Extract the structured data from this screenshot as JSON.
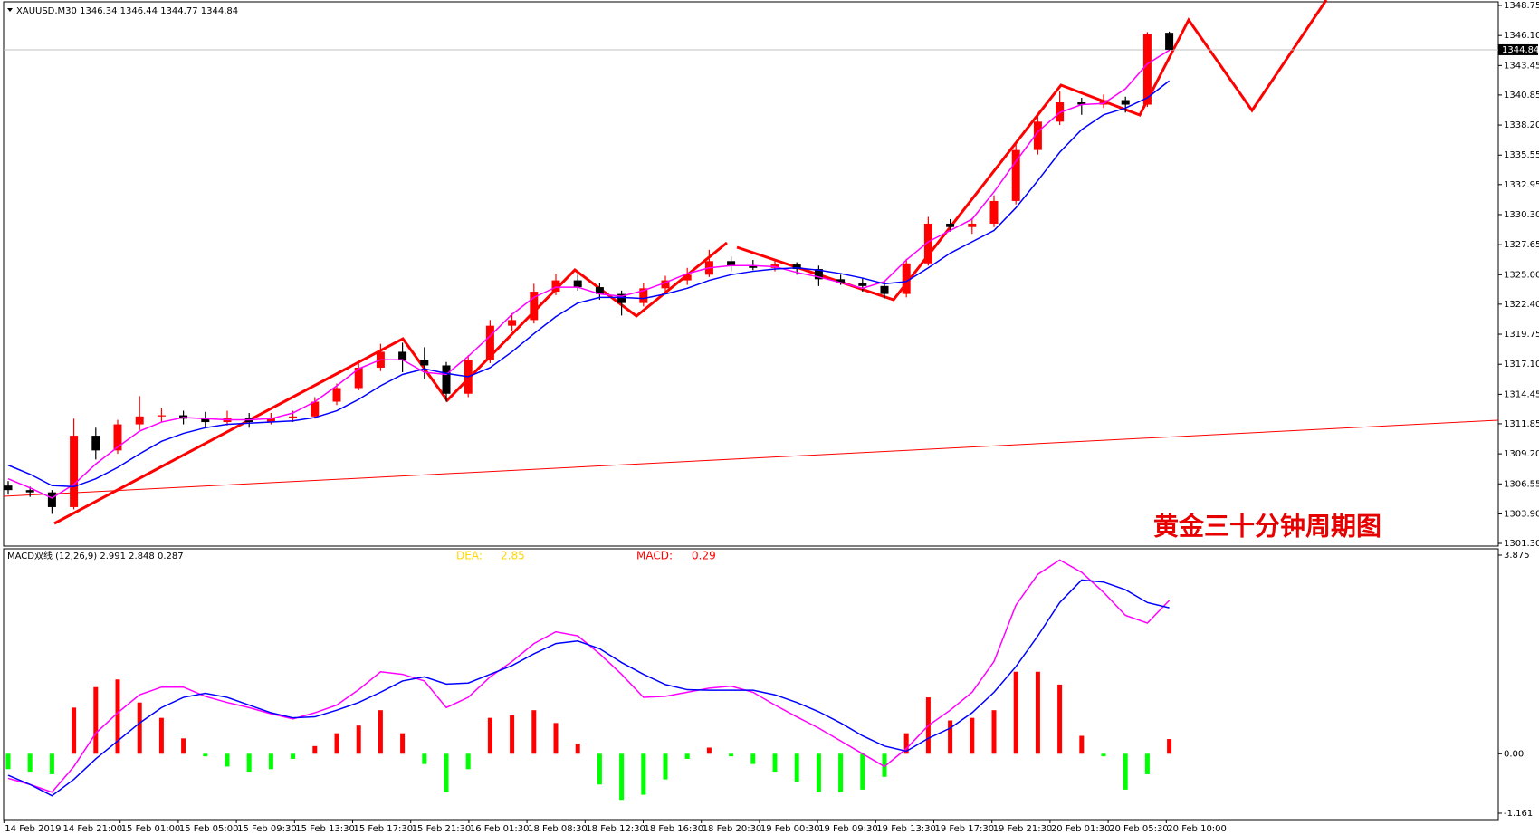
{
  "chart_data": [
    {
      "type": "candlestick",
      "title": "XAUUSD,M30",
      "header_values": [
        1346.34,
        1346.44,
        1344.77,
        1344.84
      ],
      "annotation": "黄金三十分钟周期图",
      "open": [
        1306.4,
        1306.0,
        1305.8,
        1304.5,
        1310.8,
        1309.5,
        1311.8,
        1312.5,
        1312.6,
        1312.3,
        1312.0,
        1312.4,
        1312.0,
        1312.4,
        1312.5,
        1313.8,
        1315.0,
        1316.8,
        1318.2,
        1317.5,
        1317.0,
        1314.5,
        1317.5,
        1320.5,
        1321.0,
        1323.5,
        1324.5,
        1323.9,
        1323.3,
        1322.5,
        1323.8,
        1324.5,
        1325.0,
        1326.2,
        1325.8,
        1325.6,
        1325.9,
        1325.5,
        1324.6,
        1324.3,
        1324.0,
        1323.3,
        1326.0,
        1329.5,
        1329.2,
        1329.5,
        1331.5,
        1336.0,
        1338.5,
        1340.2,
        1340.0,
        1340.4,
        1340.0,
        1346.34
      ],
      "high": [
        1306.8,
        1306.3,
        1306.0,
        1312.3,
        1311.5,
        1312.2,
        1314.3,
        1313.2,
        1313.0,
        1312.9,
        1313.0,
        1312.8,
        1312.8,
        1313.0,
        1314.2,
        1315.4,
        1317.3,
        1318.9,
        1319.0,
        1318.6,
        1317.3,
        1317.9,
        1321.0,
        1321.6,
        1324.2,
        1325.1,
        1325.0,
        1324.3,
        1323.6,
        1324.3,
        1324.9,
        1325.6,
        1327.2,
        1326.6,
        1326.3,
        1326.2,
        1326.1,
        1325.8,
        1325.0,
        1324.7,
        1324.4,
        1326.4,
        1330.1,
        1329.9,
        1330.0,
        1332.0,
        1336.6,
        1339.2,
        1341.2,
        1340.6,
        1340.9,
        1340.7,
        1346.4,
        1346.44
      ],
      "low": [
        1305.6,
        1305.4,
        1303.9,
        1304.3,
        1308.7,
        1309.2,
        1311.3,
        1312.0,
        1311.8,
        1311.6,
        1311.7,
        1311.5,
        1311.8,
        1312.0,
        1312.3,
        1313.5,
        1314.8,
        1316.5,
        1316.4,
        1315.8,
        1313.8,
        1314.2,
        1317.2,
        1320.0,
        1320.7,
        1323.2,
        1323.6,
        1322.8,
        1321.4,
        1322.2,
        1323.4,
        1324.1,
        1324.8,
        1325.3,
        1325.4,
        1325.3,
        1325.0,
        1324.0,
        1324.1,
        1323.5,
        1322.9,
        1323.0,
        1325.8,
        1328.8,
        1328.6,
        1329.2,
        1331.2,
        1335.6,
        1338.2,
        1339.1,
        1339.7,
        1339.3,
        1339.8,
        1344.77
      ],
      "close": [
        1306.0,
        1305.8,
        1304.5,
        1310.8,
        1309.5,
        1311.8,
        1312.5,
        1312.6,
        1312.3,
        1312.0,
        1312.4,
        1312.0,
        1312.4,
        1312.5,
        1313.8,
        1315.0,
        1316.8,
        1318.2,
        1317.5,
        1317.0,
        1314.5,
        1317.5,
        1320.5,
        1321.0,
        1323.5,
        1324.5,
        1323.9,
        1323.3,
        1322.5,
        1323.8,
        1324.5,
        1325.0,
        1326.2,
        1325.8,
        1325.6,
        1325.9,
        1325.5,
        1324.6,
        1324.3,
        1324.0,
        1323.3,
        1326.0,
        1329.5,
        1329.2,
        1329.5,
        1331.5,
        1336.0,
        1338.5,
        1340.2,
        1340.0,
        1340.4,
        1340.0,
        1346.2,
        1344.84
      ],
      "up_color": "#ff0000",
      "down_color": "#000000",
      "series": [
        {
          "color": "#ff00ff",
          "values": [
            1307.0,
            1306.2,
            1305.3,
            1306.5,
            1308.3,
            1309.8,
            1311.2,
            1312.0,
            1312.4,
            1312.3,
            1312.2,
            1312.2,
            1312.3,
            1312.8,
            1313.8,
            1315.2,
            1316.7,
            1317.5,
            1317.5,
            1316.4,
            1316.2,
            1317.8,
            1319.6,
            1321.5,
            1323.0,
            1323.9,
            1323.9,
            1323.3,
            1323.1,
            1323.6,
            1324.3,
            1325.1,
            1325.6,
            1325.8,
            1325.8,
            1325.7,
            1325.2,
            1324.8,
            1324.3,
            1323.8,
            1324.4,
            1326.3,
            1327.9,
            1328.9,
            1329.9,
            1332.3,
            1335.0,
            1337.6,
            1339.3,
            1340.0,
            1340.1,
            1341.4,
            1343.6,
            1344.8
          ]
        },
        {
          "color": "#0000ff",
          "values": [
            1308.2,
            1307.4,
            1306.4,
            1306.3,
            1307.0,
            1308.0,
            1309.2,
            1310.3,
            1311.0,
            1311.5,
            1311.8,
            1311.9,
            1312.0,
            1312.1,
            1312.4,
            1313.0,
            1314.0,
            1315.2,
            1316.2,
            1316.7,
            1316.3,
            1316.0,
            1316.8,
            1318.2,
            1319.8,
            1321.3,
            1322.5,
            1323.0,
            1323.0,
            1322.9,
            1323.3,
            1323.8,
            1324.5,
            1325.0,
            1325.3,
            1325.5,
            1325.6,
            1325.4,
            1325.1,
            1324.7,
            1324.2,
            1324.4,
            1325.6,
            1326.9,
            1327.9,
            1328.9,
            1330.9,
            1333.3,
            1335.8,
            1337.8,
            1339.1,
            1339.7,
            1340.6,
            1342.1
          ]
        }
      ],
      "current_price": 1344.84,
      "ylim": [
        1301.3,
        1348.75
      ],
      "yticks": [
        {
          "value": 1348.75,
          "label": "1348.75"
        },
        {
          "value": 1346.1,
          "label": "1346.10"
        },
        {
          "value": 1343.45,
          "label": "1343.45"
        },
        {
          "value": 1340.85,
          "label": "1340.85"
        },
        {
          "value": 1338.2,
          "label": "1338.20"
        },
        {
          "value": 1335.55,
          "label": "1335.55"
        },
        {
          "value": 1332.95,
          "label": "1332.95"
        },
        {
          "value": 1330.3,
          "label": "1330.30"
        },
        {
          "value": 1327.65,
          "label": "1327.65"
        },
        {
          "value": 1325,
          "label": "1325.00"
        },
        {
          "value": 1322.4,
          "label": "1322.40"
        },
        {
          "value": 1319.75,
          "label": "1319.75"
        },
        {
          "value": 1317.1,
          "label": "1317.10"
        },
        {
          "value": 1314.45,
          "label": "1314.45"
        },
        {
          "value": 1311.85,
          "label": "1311.85"
        },
        {
          "value": 1309.2,
          "label": "1309.20"
        },
        {
          "value": 1306.55,
          "label": "1306.55"
        },
        {
          "value": 1303.9,
          "label": "1303.90"
        },
        {
          "value": 1301.3,
          "label": "1301.30"
        }
      ],
      "grid": false
    },
    {
      "type": "macd",
      "title": "MACD双线 (12,26,9)",
      "header_values": [
        2.991,
        2.848,
        0.287
      ],
      "dea_label": "DEA:",
      "dea_value": 2.85,
      "macd_label": "MACD:",
      "macd_value": 0.29,
      "histogram": [
        -0.3,
        -0.35,
        -0.4,
        0.9,
        1.3,
        1.45,
        1.0,
        0.7,
        0.3,
        -0.05,
        -0.25,
        -0.35,
        -0.3,
        -0.1,
        0.15,
        0.4,
        0.55,
        0.85,
        0.4,
        -0.2,
        -0.75,
        -0.3,
        0.7,
        0.75,
        0.85,
        0.6,
        0.2,
        -0.6,
        -0.9,
        -0.8,
        -0.5,
        -0.1,
        0.12,
        -0.05,
        -0.2,
        -0.35,
        -0.55,
        -0.75,
        -0.75,
        -0.7,
        -0.45,
        0.4,
        1.1,
        0.65,
        0.7,
        0.85,
        1.6,
        1.6,
        1.35,
        0.35,
        -0.05,
        -0.7,
        -0.4,
        0.287
      ],
      "up_color": "#ff0000",
      "down_color": "#00ff00",
      "series": [
        {
          "color": "#ff00ff",
          "values": [
            -0.48,
            -0.6,
            -0.75,
            -0.25,
            0.4,
            0.8,
            1.15,
            1.3,
            1.3,
            1.12,
            1.0,
            0.9,
            0.78,
            0.68,
            0.8,
            0.95,
            1.25,
            1.6,
            1.55,
            1.42,
            0.9,
            1.1,
            1.5,
            1.8,
            2.15,
            2.38,
            2.3,
            1.95,
            1.55,
            1.1,
            1.12,
            1.2,
            1.28,
            1.32,
            1.2,
            0.95,
            0.72,
            0.5,
            0.25,
            0.0,
            -0.25,
            0.1,
            0.55,
            0.85,
            1.2,
            1.8,
            2.9,
            3.5,
            3.78,
            3.54,
            3.15,
            2.7,
            2.55,
            2.991
          ]
        },
        {
          "color": "#0000ff",
          "values": [
            -0.42,
            -0.6,
            -0.82,
            -0.5,
            -0.1,
            0.25,
            0.6,
            0.9,
            1.1,
            1.18,
            1.1,
            0.95,
            0.8,
            0.7,
            0.72,
            0.85,
            1.0,
            1.2,
            1.42,
            1.5,
            1.36,
            1.38,
            1.55,
            1.72,
            1.95,
            2.15,
            2.2,
            2.05,
            1.78,
            1.55,
            1.35,
            1.25,
            1.24,
            1.24,
            1.24,
            1.15,
            1.0,
            0.82,
            0.6,
            0.35,
            0.15,
            0.05,
            0.3,
            0.5,
            0.8,
            1.2,
            1.7,
            2.3,
            2.95,
            3.39,
            3.35,
            3.2,
            2.95,
            2.848
          ]
        }
      ],
      "ylim": [
        -1.161,
        3.875
      ],
      "yticks": [
        3.875,
        {
          "value": 0,
          "label": "0.00"
        },
        -1.161
      ],
      "date_labels": [
        "14 Feb 2019",
        "14 Feb 21:00",
        "15 Feb 01:00",
        "15 Feb 05:00",
        "15 Feb 09:30",
        "15 Feb 13:30",
        "15 Feb 17:30",
        "15 Feb 21:30",
        "16 Feb 01:30",
        "18 Feb 08:30",
        "18 Feb 12:30",
        "18 Feb 16:30",
        "18 Feb 20:30",
        "19 Feb 00:30",
        "19 Feb 09:30",
        "19 Feb 13:30",
        "19 Feb 17:30",
        "19 Feb 21:30",
        "20 Feb 01:30",
        "20 Feb 05:30",
        "20 Feb 10:00"
      ]
    }
  ]
}
